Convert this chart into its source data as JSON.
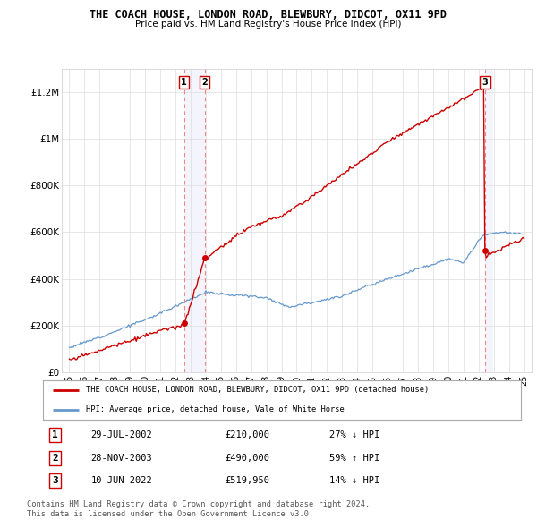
{
  "title": "THE COACH HOUSE, LONDON ROAD, BLEWBURY, DIDCOT, OX11 9PD",
  "subtitle": "Price paid vs. HM Land Registry's House Price Index (HPI)",
  "red_line_label": "THE COACH HOUSE, LONDON ROAD, BLEWBURY, DIDCOT, OX11 9PD (detached house)",
  "blue_line_label": "HPI: Average price, detached house, Vale of White Horse",
  "transactions": [
    {
      "num": 1,
      "date": "29-JUL-2002",
      "price": 210000,
      "pct": "27%",
      "dir": "↓",
      "year_x": 2002.57
    },
    {
      "num": 2,
      "date": "28-NOV-2003",
      "price": 490000,
      "pct": "59%",
      "dir": "↑",
      "year_x": 2003.92
    },
    {
      "num": 3,
      "date": "10-JUN-2022",
      "price": 519950,
      "pct": "14%",
      "dir": "↓",
      "year_x": 2022.44
    }
  ],
  "footer": "Contains HM Land Registry data © Crown copyright and database right 2024.\nThis data is licensed under the Open Government Licence v3.0.",
  "ylim": [
    0,
    1300000
  ],
  "xlim_start": 1994.5,
  "xlim_end": 2025.5,
  "yticks": [
    0,
    200000,
    400000,
    600000,
    800000,
    1000000,
    1200000
  ],
  "ytick_labels": [
    "£0",
    "£200K",
    "£400K",
    "£600K",
    "£800K",
    "£1M",
    "£1.2M"
  ],
  "xticks": [
    1995,
    1996,
    1997,
    1998,
    1999,
    2000,
    2001,
    2002,
    2003,
    2004,
    2005,
    2006,
    2007,
    2008,
    2009,
    2010,
    2011,
    2012,
    2013,
    2014,
    2015,
    2016,
    2017,
    2018,
    2019,
    2020,
    2021,
    2022,
    2023,
    2024,
    2025
  ],
  "red_color": "#cc0000",
  "blue_color": "#6699cc",
  "vline_color": "#ee8888",
  "bg_color": "#ffffff",
  "grid_color": "#dddddd",
  "sale_prices": [
    210000,
    490000,
    519950
  ]
}
